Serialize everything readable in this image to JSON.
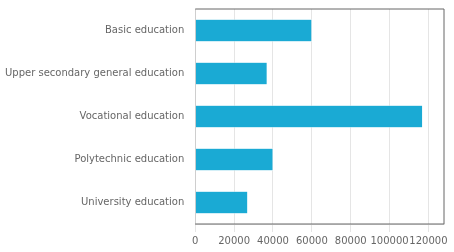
{
  "chart_data": {
    "type": "bar",
    "orientation": "horizontal",
    "categories": [
      "University education",
      "Polytechnic education",
      "Vocational education",
      "Upper secondary general education",
      "Basic education"
    ],
    "values": [
      27000,
      40000,
      117000,
      37000,
      60000
    ],
    "color": "#1aaad4",
    "xlim": [
      0,
      128000
    ],
    "xticks": [
      0,
      20000,
      40000,
      60000,
      80000,
      100000,
      120000
    ],
    "grid": true
  }
}
